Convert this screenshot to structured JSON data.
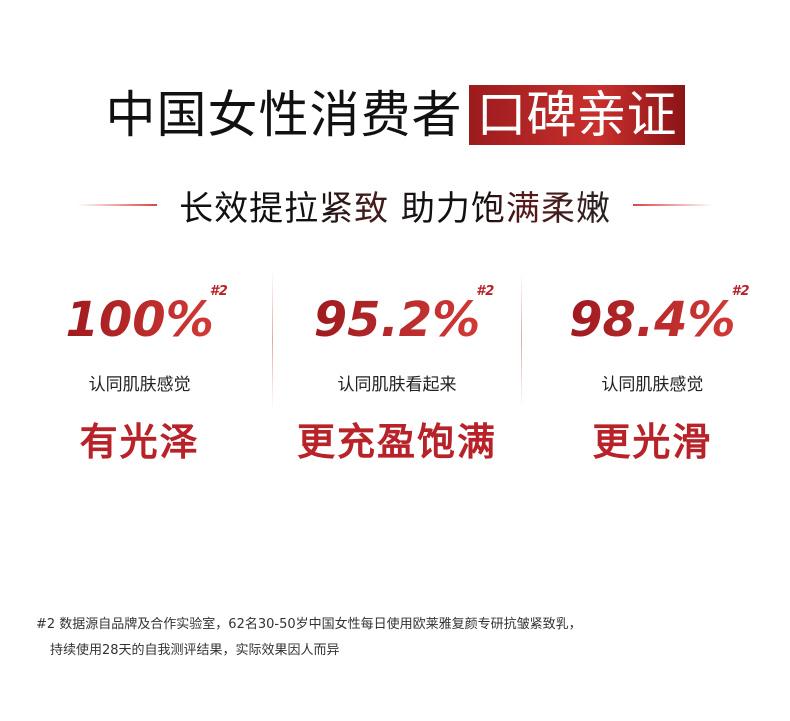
{
  "header": {
    "title_main": "中国女性消费者",
    "title_highlight": "口碑亲证",
    "subtitle": "长效提拉紧致 助力饱满柔嫩"
  },
  "stats": [
    {
      "value": "100%",
      "footnote_mark": "#2",
      "description": "认同肌肤感觉",
      "claim": "有光泽"
    },
    {
      "value": "95.2%",
      "footnote_mark": "#2",
      "description": "认同肌肤看起来",
      "claim": "更充盈饱满"
    },
    {
      "value": "98.4%",
      "footnote_mark": "#2",
      "description": "认同肌肤感觉",
      "claim": "更光滑"
    }
  ],
  "footnote": {
    "line1": "#2 数据源自品牌及合作实验室，62名30-50岁中国女性每日使用欧莱雅复颜专研抗皱紧致乳，",
    "line2": "持续使用28天的自我测评结果，实际效果因人而异"
  },
  "colors": {
    "accent": "#b8232a",
    "text": "#111111"
  }
}
